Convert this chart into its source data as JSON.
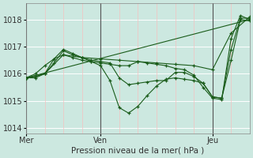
{
  "background_color": "#cce8e0",
  "grid_color_h": "#ffffff",
  "grid_color_v": "#f5c0c0",
  "line_color": "#1a5c1a",
  "xlabel": "Pression niveau de la mer( hPa )",
  "ylim": [
    1013.8,
    1018.6
  ],
  "yticks": [
    1014,
    1015,
    1016,
    1017,
    1018
  ],
  "xlim": [
    0,
    72
  ],
  "day_labels": [
    "Mer",
    "Ven",
    "Jeu"
  ],
  "day_positions": [
    0,
    24,
    60
  ],
  "x_grid_major": 6,
  "series": [
    {
      "x": [
        0,
        3,
        6,
        9,
        12,
        15,
        18,
        21,
        24,
        27,
        30,
        33,
        36,
        39,
        42,
        45,
        48,
        51,
        54,
        57,
        60,
        63,
        66,
        69,
        72
      ],
      "y": [
        1015.85,
        1016.0,
        1016.3,
        1016.55,
        1016.7,
        1016.6,
        1016.5,
        1016.45,
        1016.4,
        1016.35,
        1016.3,
        1016.3,
        1016.45,
        1016.4,
        1016.35,
        1016.3,
        1016.2,
        1016.15,
        1015.95,
        1015.5,
        1015.1,
        1015.05,
        1017.3,
        1018.15,
        1018.0
      ]
    },
    {
      "x": [
        0,
        6,
        12,
        18,
        24,
        30,
        36,
        42,
        48,
        54,
        60,
        66,
        72
      ],
      "y": [
        1015.85,
        1016.0,
        1016.7,
        1016.6,
        1016.55,
        1016.5,
        1016.45,
        1016.4,
        1016.35,
        1016.3,
        1016.15,
        1017.5,
        1018.1
      ]
    },
    {
      "x": [
        0,
        3,
        6,
        9,
        12,
        15,
        18,
        21,
        24,
        27,
        30,
        33,
        36,
        39,
        42,
        45,
        48,
        51,
        54,
        57,
        60,
        63,
        66,
        69,
        72
      ],
      "y": [
        1015.85,
        1015.9,
        1016.0,
        1016.4,
        1016.85,
        1016.7,
        1016.6,
        1016.5,
        1016.45,
        1016.4,
        1015.85,
        1015.6,
        1015.65,
        1015.7,
        1015.75,
        1015.75,
        1016.05,
        1016.05,
        1015.9,
        1015.65,
        1015.15,
        1015.1,
        1016.9,
        1018.05,
        1018.05
      ]
    },
    {
      "x": [
        0,
        3,
        6,
        9,
        12,
        15,
        18,
        21,
        24,
        27,
        30,
        33,
        36,
        39,
        42,
        45,
        48,
        51,
        54,
        57,
        60,
        63,
        66,
        69,
        72
      ],
      "y": [
        1015.85,
        1015.85,
        1016.0,
        1016.55,
        1016.9,
        1016.75,
        1016.6,
        1016.45,
        1016.3,
        1015.75,
        1014.75,
        1014.55,
        1014.8,
        1015.2,
        1015.55,
        1015.8,
        1015.85,
        1015.8,
        1015.75,
        1015.65,
        1015.15,
        1015.1,
        1016.5,
        1018.0,
        1017.95
      ]
    },
    {
      "x": [
        0,
        72
      ],
      "y": [
        1015.85,
        1018.0
      ]
    }
  ]
}
